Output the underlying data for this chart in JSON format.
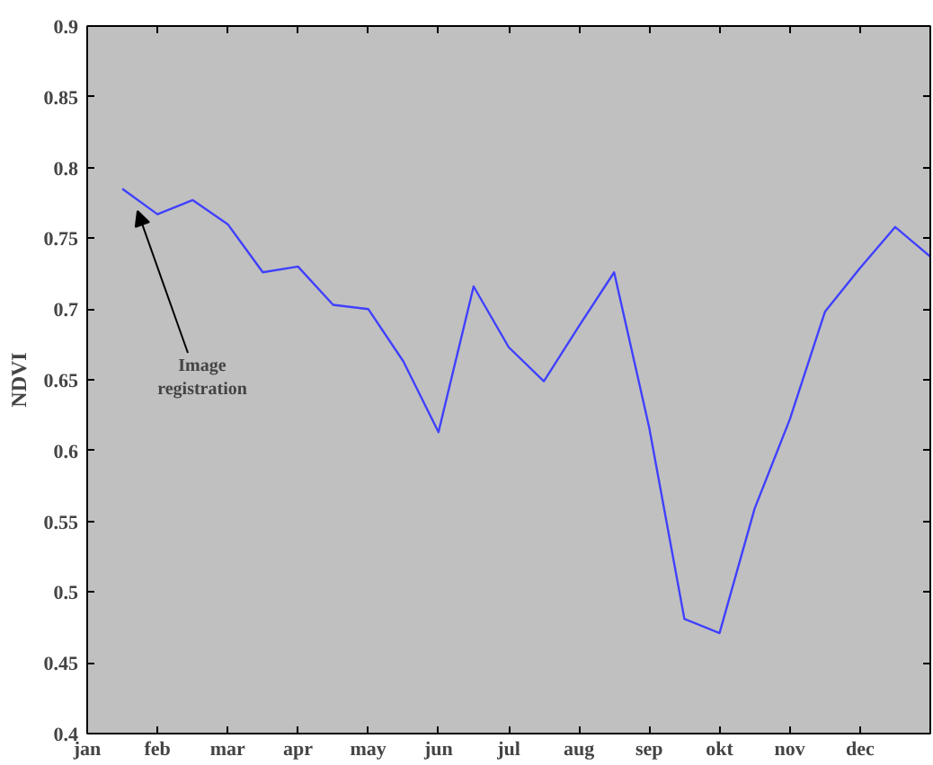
{
  "chart_data": {
    "type": "line",
    "ylabel": "NDVI",
    "categories": [
      "jan",
      null,
      "feb",
      null,
      "mar",
      null,
      "apr",
      null,
      "may",
      null,
      "jun",
      null,
      "jul",
      null,
      "aug",
      null,
      "sep",
      null,
      "okt",
      null,
      "nov",
      null,
      "dec",
      null,
      null
    ],
    "series": [
      {
        "color": "#4040ff",
        "values": [
          null,
          0.785,
          0.767,
          0.777,
          0.76,
          0.726,
          0.73,
          0.703,
          0.7,
          0.663,
          0.613,
          0.716,
          0.673,
          0.649,
          0.688,
          0.726,
          0.616,
          0.481,
          0.471,
          0.559,
          0.622,
          0.698,
          0.729,
          0.758,
          0.737
        ]
      }
    ],
    "ylim": [
      0.4,
      0.9
    ],
    "yticks": [
      0.4,
      0.45,
      0.5,
      0.55,
      0.6,
      0.65,
      0.7,
      0.75,
      0.8,
      0.85,
      0.9
    ],
    "annotations": [
      "Image\nregistration"
    ],
    "grid": false,
    "marker": "none",
    "line_style": "solid"
  }
}
